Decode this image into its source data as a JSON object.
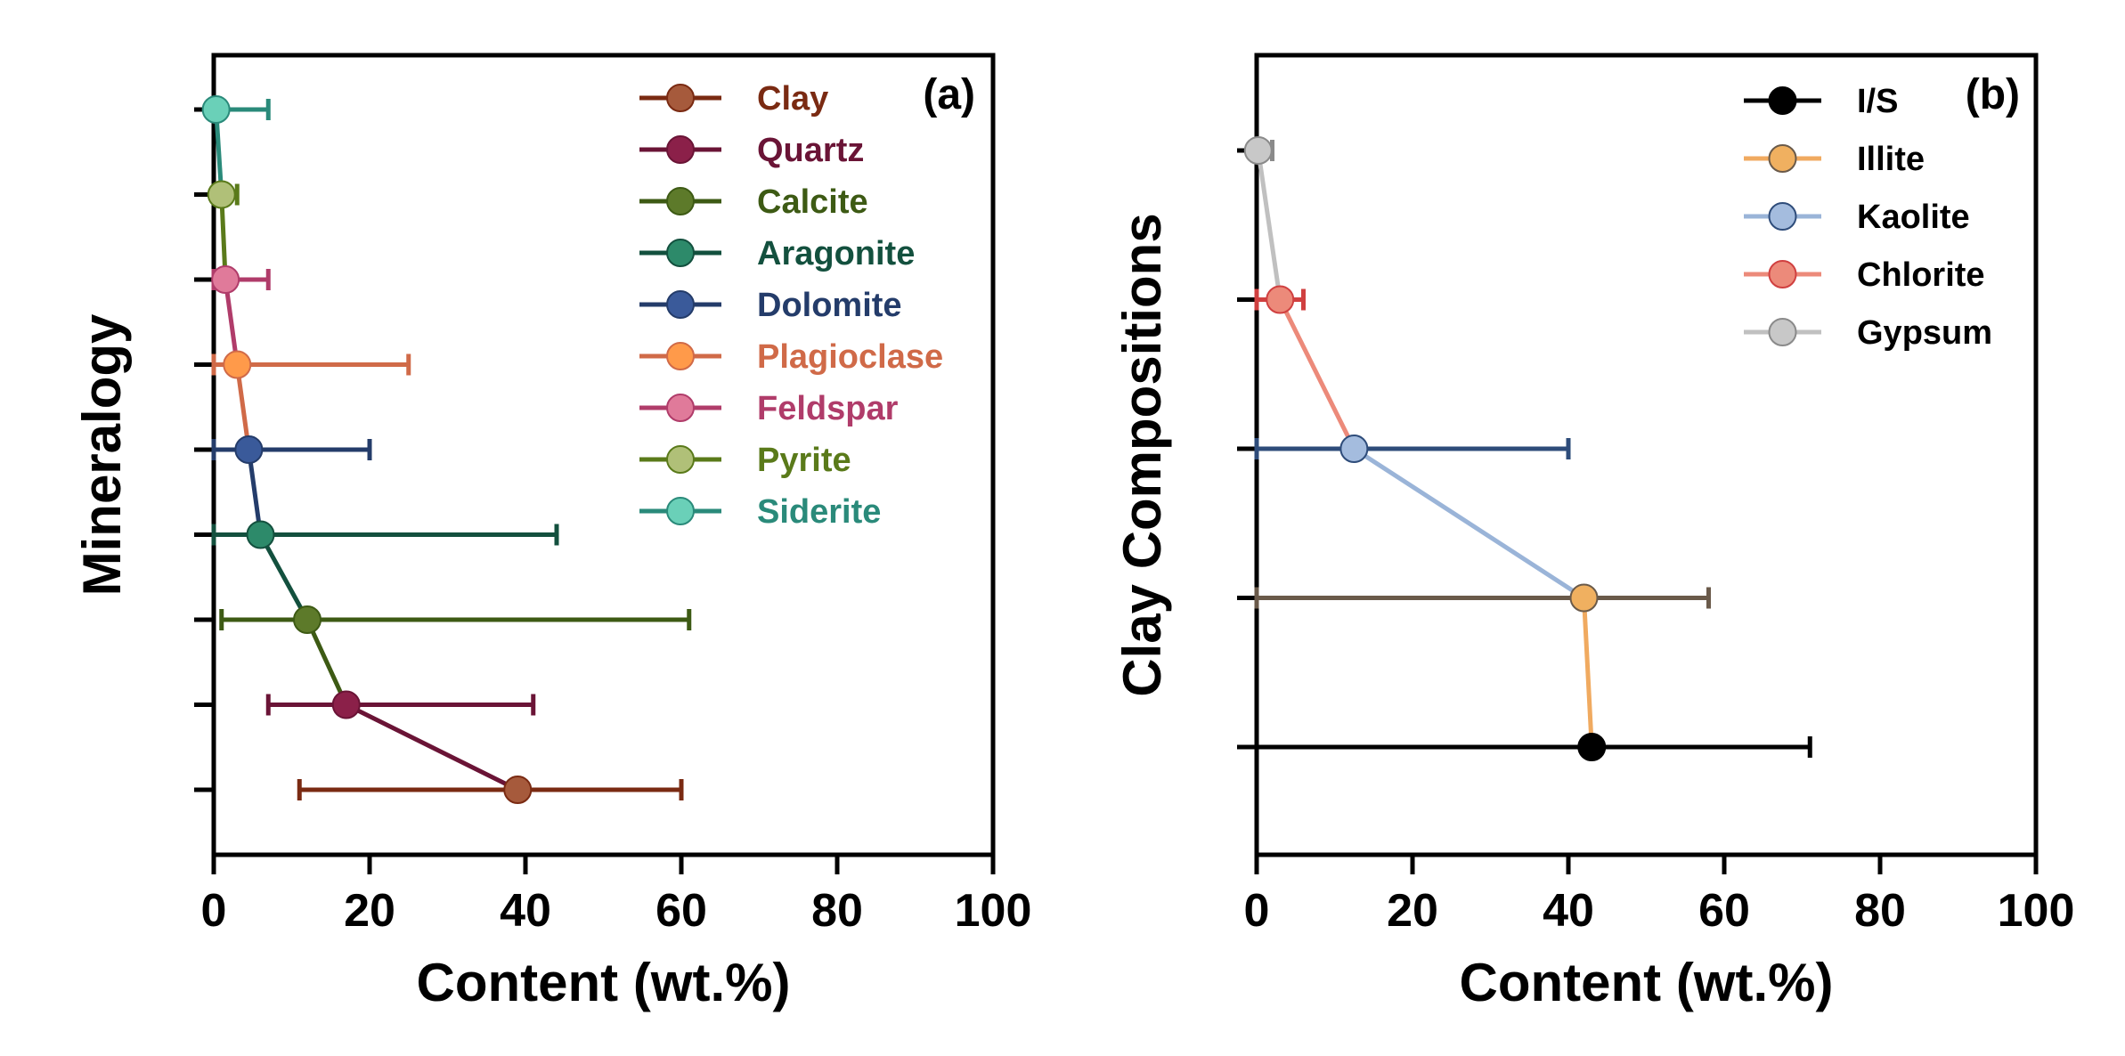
{
  "chart_data": [
    {
      "panel_label": "(a)",
      "type": "line",
      "orientation": "horizontal",
      "xlabel": "Content (wt.%)",
      "ylabel": "Mineralogy",
      "xlim": [
        0,
        100
      ],
      "xticks": [
        "0",
        "20",
        "40",
        "60",
        "80",
        "100"
      ],
      "xtick_values": [
        0,
        20,
        40,
        60,
        80,
        100
      ],
      "grid": false,
      "legend_position": "top-right",
      "series": [
        {
          "name": "Clay",
          "value": 39,
          "error_low": 11,
          "error_high": 60,
          "color": "#7a2a12",
          "marker_color": "#a65a3c"
        },
        {
          "name": "Quartz",
          "value": 17,
          "error_low": 7,
          "error_high": 41,
          "color": "#6a1436",
          "marker_color": "#8b2049"
        },
        {
          "name": "Calcite",
          "value": 12,
          "error_low": 1,
          "error_high": 61,
          "color": "#3d5a14",
          "marker_color": "#5d7a2a"
        },
        {
          "name": "Aragonite",
          "value": 6,
          "error_low": 0,
          "error_high": 44,
          "color": "#13503e",
          "marker_color": "#2d8a6a"
        },
        {
          "name": "Dolomite",
          "value": 4.5,
          "error_low": 0,
          "error_high": 20,
          "color": "#243c6a",
          "marker_color": "#3a5a9a"
        },
        {
          "name": "Plagioclase",
          "value": 3,
          "error_low": 0,
          "error_high": 25,
          "color": "#d06a48",
          "marker_color": "#ff9a4a"
        },
        {
          "name": "Feldspar",
          "value": 1.5,
          "error_low": 0,
          "error_high": 7,
          "color": "#b03c6a",
          "marker_color": "#e07a9a"
        },
        {
          "name": "Pyrite",
          "value": 1,
          "error_low": 0,
          "error_high": 3,
          "color": "#5a7a1a",
          "marker_color": "#b0c078"
        },
        {
          "name": "Siderite",
          "value": 0.3,
          "error_low": 0,
          "error_high": 7,
          "color": "#2a8a7a",
          "marker_color": "#6ad0b8"
        }
      ]
    },
    {
      "panel_label": "(b)",
      "type": "line",
      "orientation": "horizontal",
      "xlabel": "Content (wt.%)",
      "ylabel": "Clay Compositions",
      "xlim": [
        0,
        100
      ],
      "xticks": [
        "0",
        "20",
        "40",
        "60",
        "80",
        "100"
      ],
      "xtick_values": [
        0,
        20,
        40,
        60,
        80,
        100
      ],
      "grid": false,
      "legend_position": "top-right",
      "series": [
        {
          "name": "I/S",
          "value": 43,
          "error_low": 0,
          "error_high": 71,
          "color": "#000000",
          "marker_color": "#000000"
        },
        {
          "name": "Illite",
          "value": 42,
          "error_low": 0,
          "error_high": 58,
          "color": "#6a5a4a",
          "marker_color": "#f0b060",
          "line_color": "#f0aa60"
        },
        {
          "name": "Kaolite",
          "value": 12.5,
          "error_low": 0,
          "error_high": 40,
          "color": "#2e4c7a",
          "marker_color": "#a4bcde",
          "line_color": "#9ab4d8"
        },
        {
          "name": "Chlorite",
          "value": 3,
          "error_low": 0,
          "error_high": 6,
          "color": "#d04040",
          "marker_color": "#ec8a7a",
          "line_color": "#ec8a7a"
        },
        {
          "name": "Gypsum",
          "value": 0.2,
          "error_low": 0,
          "error_high": 2,
          "color": "#8a8a8a",
          "marker_color": "#c8c8c8",
          "line_color": "#c0c0c0"
        }
      ]
    }
  ]
}
